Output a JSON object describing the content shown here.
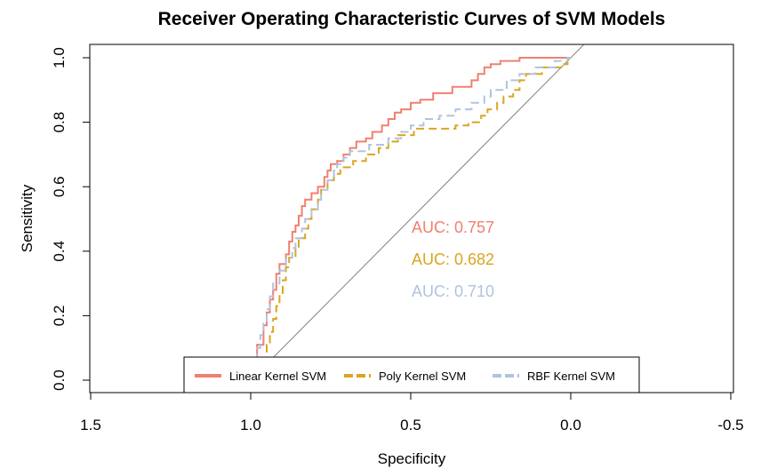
{
  "chart_data": {
    "type": "line",
    "title": "Receiver Operating Characteristic Curves of SVM Models",
    "xlabel": "Specificity",
    "ylabel": "Sensitivity",
    "xlim": [
      1.5,
      -0.5
    ],
    "ylim": [
      0.0,
      1.0
    ],
    "x_ticks": [
      "1.5",
      "1.0",
      "0.5",
      "0.0",
      "-0.5"
    ],
    "x_tick_values": [
      1.5,
      1.0,
      0.5,
      0.0,
      -0.5
    ],
    "y_ticks": [
      "0.0",
      "0.2",
      "0.4",
      "0.6",
      "0.8",
      "1.0"
    ],
    "y_tick_values": [
      0.0,
      0.2,
      0.4,
      0.6,
      0.8,
      1.0
    ],
    "reference_line": {
      "from": [
        1.0,
        0.0
      ],
      "to": [
        0.0,
        1.0
      ],
      "color": "#808080"
    },
    "legend_position": "bottom",
    "series": [
      {
        "name": "Linear Kernel SVM",
        "color": "#F08070",
        "dash": "solid",
        "auc_label": "AUC: 0.757",
        "points": [
          [
            1.0,
            0.0
          ],
          [
            0.99,
            0.0
          ],
          [
            0.99,
            0.07
          ],
          [
            0.98,
            0.07
          ],
          [
            0.98,
            0.11
          ],
          [
            0.96,
            0.11
          ],
          [
            0.96,
            0.17
          ],
          [
            0.95,
            0.17
          ],
          [
            0.95,
            0.21
          ],
          [
            0.94,
            0.21
          ],
          [
            0.94,
            0.25
          ],
          [
            0.93,
            0.25
          ],
          [
            0.93,
            0.28
          ],
          [
            0.92,
            0.28
          ],
          [
            0.92,
            0.33
          ],
          [
            0.91,
            0.33
          ],
          [
            0.91,
            0.36
          ],
          [
            0.89,
            0.36
          ],
          [
            0.89,
            0.39
          ],
          [
            0.88,
            0.39
          ],
          [
            0.88,
            0.43
          ],
          [
            0.87,
            0.43
          ],
          [
            0.87,
            0.46
          ],
          [
            0.86,
            0.46
          ],
          [
            0.86,
            0.48
          ],
          [
            0.85,
            0.48
          ],
          [
            0.85,
            0.51
          ],
          [
            0.84,
            0.51
          ],
          [
            0.84,
            0.54
          ],
          [
            0.83,
            0.54
          ],
          [
            0.83,
            0.56
          ],
          [
            0.81,
            0.56
          ],
          [
            0.81,
            0.58
          ],
          [
            0.79,
            0.58
          ],
          [
            0.79,
            0.6
          ],
          [
            0.77,
            0.6
          ],
          [
            0.77,
            0.63
          ],
          [
            0.76,
            0.63
          ],
          [
            0.76,
            0.65
          ],
          [
            0.75,
            0.65
          ],
          [
            0.75,
            0.67
          ],
          [
            0.73,
            0.67
          ],
          [
            0.73,
            0.68
          ],
          [
            0.71,
            0.68
          ],
          [
            0.71,
            0.7
          ],
          [
            0.69,
            0.7
          ],
          [
            0.69,
            0.72
          ],
          [
            0.67,
            0.72
          ],
          [
            0.67,
            0.74
          ],
          [
            0.64,
            0.74
          ],
          [
            0.64,
            0.75
          ],
          [
            0.62,
            0.75
          ],
          [
            0.62,
            0.77
          ],
          [
            0.59,
            0.77
          ],
          [
            0.59,
            0.79
          ],
          [
            0.57,
            0.79
          ],
          [
            0.57,
            0.81
          ],
          [
            0.55,
            0.81
          ],
          [
            0.55,
            0.83
          ],
          [
            0.53,
            0.83
          ],
          [
            0.53,
            0.84
          ],
          [
            0.5,
            0.84
          ],
          [
            0.5,
            0.86
          ],
          [
            0.47,
            0.86
          ],
          [
            0.47,
            0.87
          ],
          [
            0.43,
            0.87
          ],
          [
            0.43,
            0.89
          ],
          [
            0.37,
            0.89
          ],
          [
            0.37,
            0.91
          ],
          [
            0.31,
            0.91
          ],
          [
            0.31,
            0.93
          ],
          [
            0.29,
            0.93
          ],
          [
            0.29,
            0.95
          ],
          [
            0.27,
            0.95
          ],
          [
            0.27,
            0.97
          ],
          [
            0.25,
            0.97
          ],
          [
            0.25,
            0.98
          ],
          [
            0.22,
            0.98
          ],
          [
            0.22,
            0.99
          ],
          [
            0.16,
            0.99
          ],
          [
            0.16,
            1.0
          ],
          [
            0.0,
            1.0
          ]
        ]
      },
      {
        "name": "Poly Kernel SVM",
        "color": "#DAA520",
        "dash": "dashed",
        "auc_label": "AUC: 0.682",
        "points": [
          [
            0.98,
            0.0
          ],
          [
            0.98,
            0.03
          ],
          [
            0.97,
            0.03
          ],
          [
            0.97,
            0.07
          ],
          [
            0.95,
            0.07
          ],
          [
            0.95,
            0.11
          ],
          [
            0.94,
            0.11
          ],
          [
            0.94,
            0.15
          ],
          [
            0.93,
            0.15
          ],
          [
            0.93,
            0.19
          ],
          [
            0.92,
            0.19
          ],
          [
            0.92,
            0.23
          ],
          [
            0.91,
            0.23
          ],
          [
            0.91,
            0.27
          ],
          [
            0.9,
            0.27
          ],
          [
            0.9,
            0.31
          ],
          [
            0.89,
            0.31
          ],
          [
            0.89,
            0.35
          ],
          [
            0.88,
            0.35
          ],
          [
            0.88,
            0.38
          ],
          [
            0.86,
            0.38
          ],
          [
            0.86,
            0.41
          ],
          [
            0.85,
            0.41
          ],
          [
            0.85,
            0.44
          ],
          [
            0.83,
            0.44
          ],
          [
            0.83,
            0.47
          ],
          [
            0.82,
            0.47
          ],
          [
            0.82,
            0.5
          ],
          [
            0.81,
            0.5
          ],
          [
            0.81,
            0.53
          ],
          [
            0.79,
            0.53
          ],
          [
            0.79,
            0.56
          ],
          [
            0.78,
            0.56
          ],
          [
            0.78,
            0.59
          ],
          [
            0.76,
            0.59
          ],
          [
            0.76,
            0.62
          ],
          [
            0.74,
            0.62
          ],
          [
            0.74,
            0.64
          ],
          [
            0.72,
            0.64
          ],
          [
            0.72,
            0.66
          ],
          [
            0.68,
            0.66
          ],
          [
            0.68,
            0.68
          ],
          [
            0.64,
            0.68
          ],
          [
            0.64,
            0.7
          ],
          [
            0.6,
            0.7
          ],
          [
            0.6,
            0.72
          ],
          [
            0.57,
            0.72
          ],
          [
            0.57,
            0.74
          ],
          [
            0.54,
            0.74
          ],
          [
            0.54,
            0.76
          ],
          [
            0.49,
            0.76
          ],
          [
            0.49,
            0.78
          ],
          [
            0.36,
            0.78
          ],
          [
            0.36,
            0.79
          ],
          [
            0.32,
            0.79
          ],
          [
            0.32,
            0.8
          ],
          [
            0.28,
            0.8
          ],
          [
            0.28,
            0.82
          ],
          [
            0.26,
            0.82
          ],
          [
            0.26,
            0.84
          ],
          [
            0.23,
            0.84
          ],
          [
            0.23,
            0.86
          ],
          [
            0.21,
            0.86
          ],
          [
            0.21,
            0.88
          ],
          [
            0.18,
            0.88
          ],
          [
            0.18,
            0.9
          ],
          [
            0.16,
            0.9
          ],
          [
            0.16,
            0.93
          ],
          [
            0.14,
            0.93
          ],
          [
            0.14,
            0.95
          ],
          [
            0.09,
            0.95
          ],
          [
            0.09,
            0.97
          ],
          [
            0.03,
            0.97
          ],
          [
            0.03,
            0.98
          ],
          [
            0.01,
            0.98
          ],
          [
            0.01,
            1.0
          ],
          [
            0.0,
            1.0
          ]
        ]
      },
      {
        "name": "RBF Kernel SVM",
        "color": "#B0C4DE",
        "dash": "dashed",
        "auc_label": "AUC: 0.710",
        "points": [
          [
            1.0,
            0.0
          ],
          [
            0.99,
            0.0
          ],
          [
            0.99,
            0.05
          ],
          [
            0.98,
            0.05
          ],
          [
            0.98,
            0.1
          ],
          [
            0.97,
            0.1
          ],
          [
            0.97,
            0.14
          ],
          [
            0.96,
            0.14
          ],
          [
            0.96,
            0.18
          ],
          [
            0.95,
            0.18
          ],
          [
            0.95,
            0.22
          ],
          [
            0.94,
            0.22
          ],
          [
            0.94,
            0.26
          ],
          [
            0.93,
            0.26
          ],
          [
            0.93,
            0.3
          ],
          [
            0.91,
            0.3
          ],
          [
            0.91,
            0.34
          ],
          [
            0.89,
            0.34
          ],
          [
            0.89,
            0.38
          ],
          [
            0.87,
            0.38
          ],
          [
            0.87,
            0.41
          ],
          [
            0.86,
            0.41
          ],
          [
            0.86,
            0.44
          ],
          [
            0.84,
            0.44
          ],
          [
            0.84,
            0.47
          ],
          [
            0.83,
            0.47
          ],
          [
            0.83,
            0.5
          ],
          [
            0.81,
            0.5
          ],
          [
            0.81,
            0.53
          ],
          [
            0.79,
            0.53
          ],
          [
            0.79,
            0.56
          ],
          [
            0.78,
            0.56
          ],
          [
            0.78,
            0.59
          ],
          [
            0.76,
            0.59
          ],
          [
            0.76,
            0.62
          ],
          [
            0.74,
            0.62
          ],
          [
            0.74,
            0.65
          ],
          [
            0.73,
            0.65
          ],
          [
            0.73,
            0.67
          ],
          [
            0.71,
            0.67
          ],
          [
            0.71,
            0.69
          ],
          [
            0.69,
            0.69
          ],
          [
            0.69,
            0.71
          ],
          [
            0.63,
            0.71
          ],
          [
            0.63,
            0.73
          ],
          [
            0.57,
            0.73
          ],
          [
            0.57,
            0.75
          ],
          [
            0.53,
            0.75
          ],
          [
            0.53,
            0.77
          ],
          [
            0.5,
            0.77
          ],
          [
            0.5,
            0.79
          ],
          [
            0.46,
            0.79
          ],
          [
            0.46,
            0.81
          ],
          [
            0.41,
            0.81
          ],
          [
            0.41,
            0.82
          ],
          [
            0.36,
            0.82
          ],
          [
            0.36,
            0.84
          ],
          [
            0.31,
            0.84
          ],
          [
            0.31,
            0.86
          ],
          [
            0.27,
            0.86
          ],
          [
            0.27,
            0.88
          ],
          [
            0.25,
            0.88
          ],
          [
            0.25,
            0.9
          ],
          [
            0.2,
            0.9
          ],
          [
            0.2,
            0.93
          ],
          [
            0.16,
            0.93
          ],
          [
            0.16,
            0.95
          ],
          [
            0.11,
            0.95
          ],
          [
            0.11,
            0.97
          ],
          [
            0.05,
            0.97
          ],
          [
            0.05,
            0.99
          ],
          [
            0.01,
            0.99
          ],
          [
            0.01,
            1.0
          ],
          [
            0.0,
            1.0
          ]
        ]
      }
    ]
  }
}
